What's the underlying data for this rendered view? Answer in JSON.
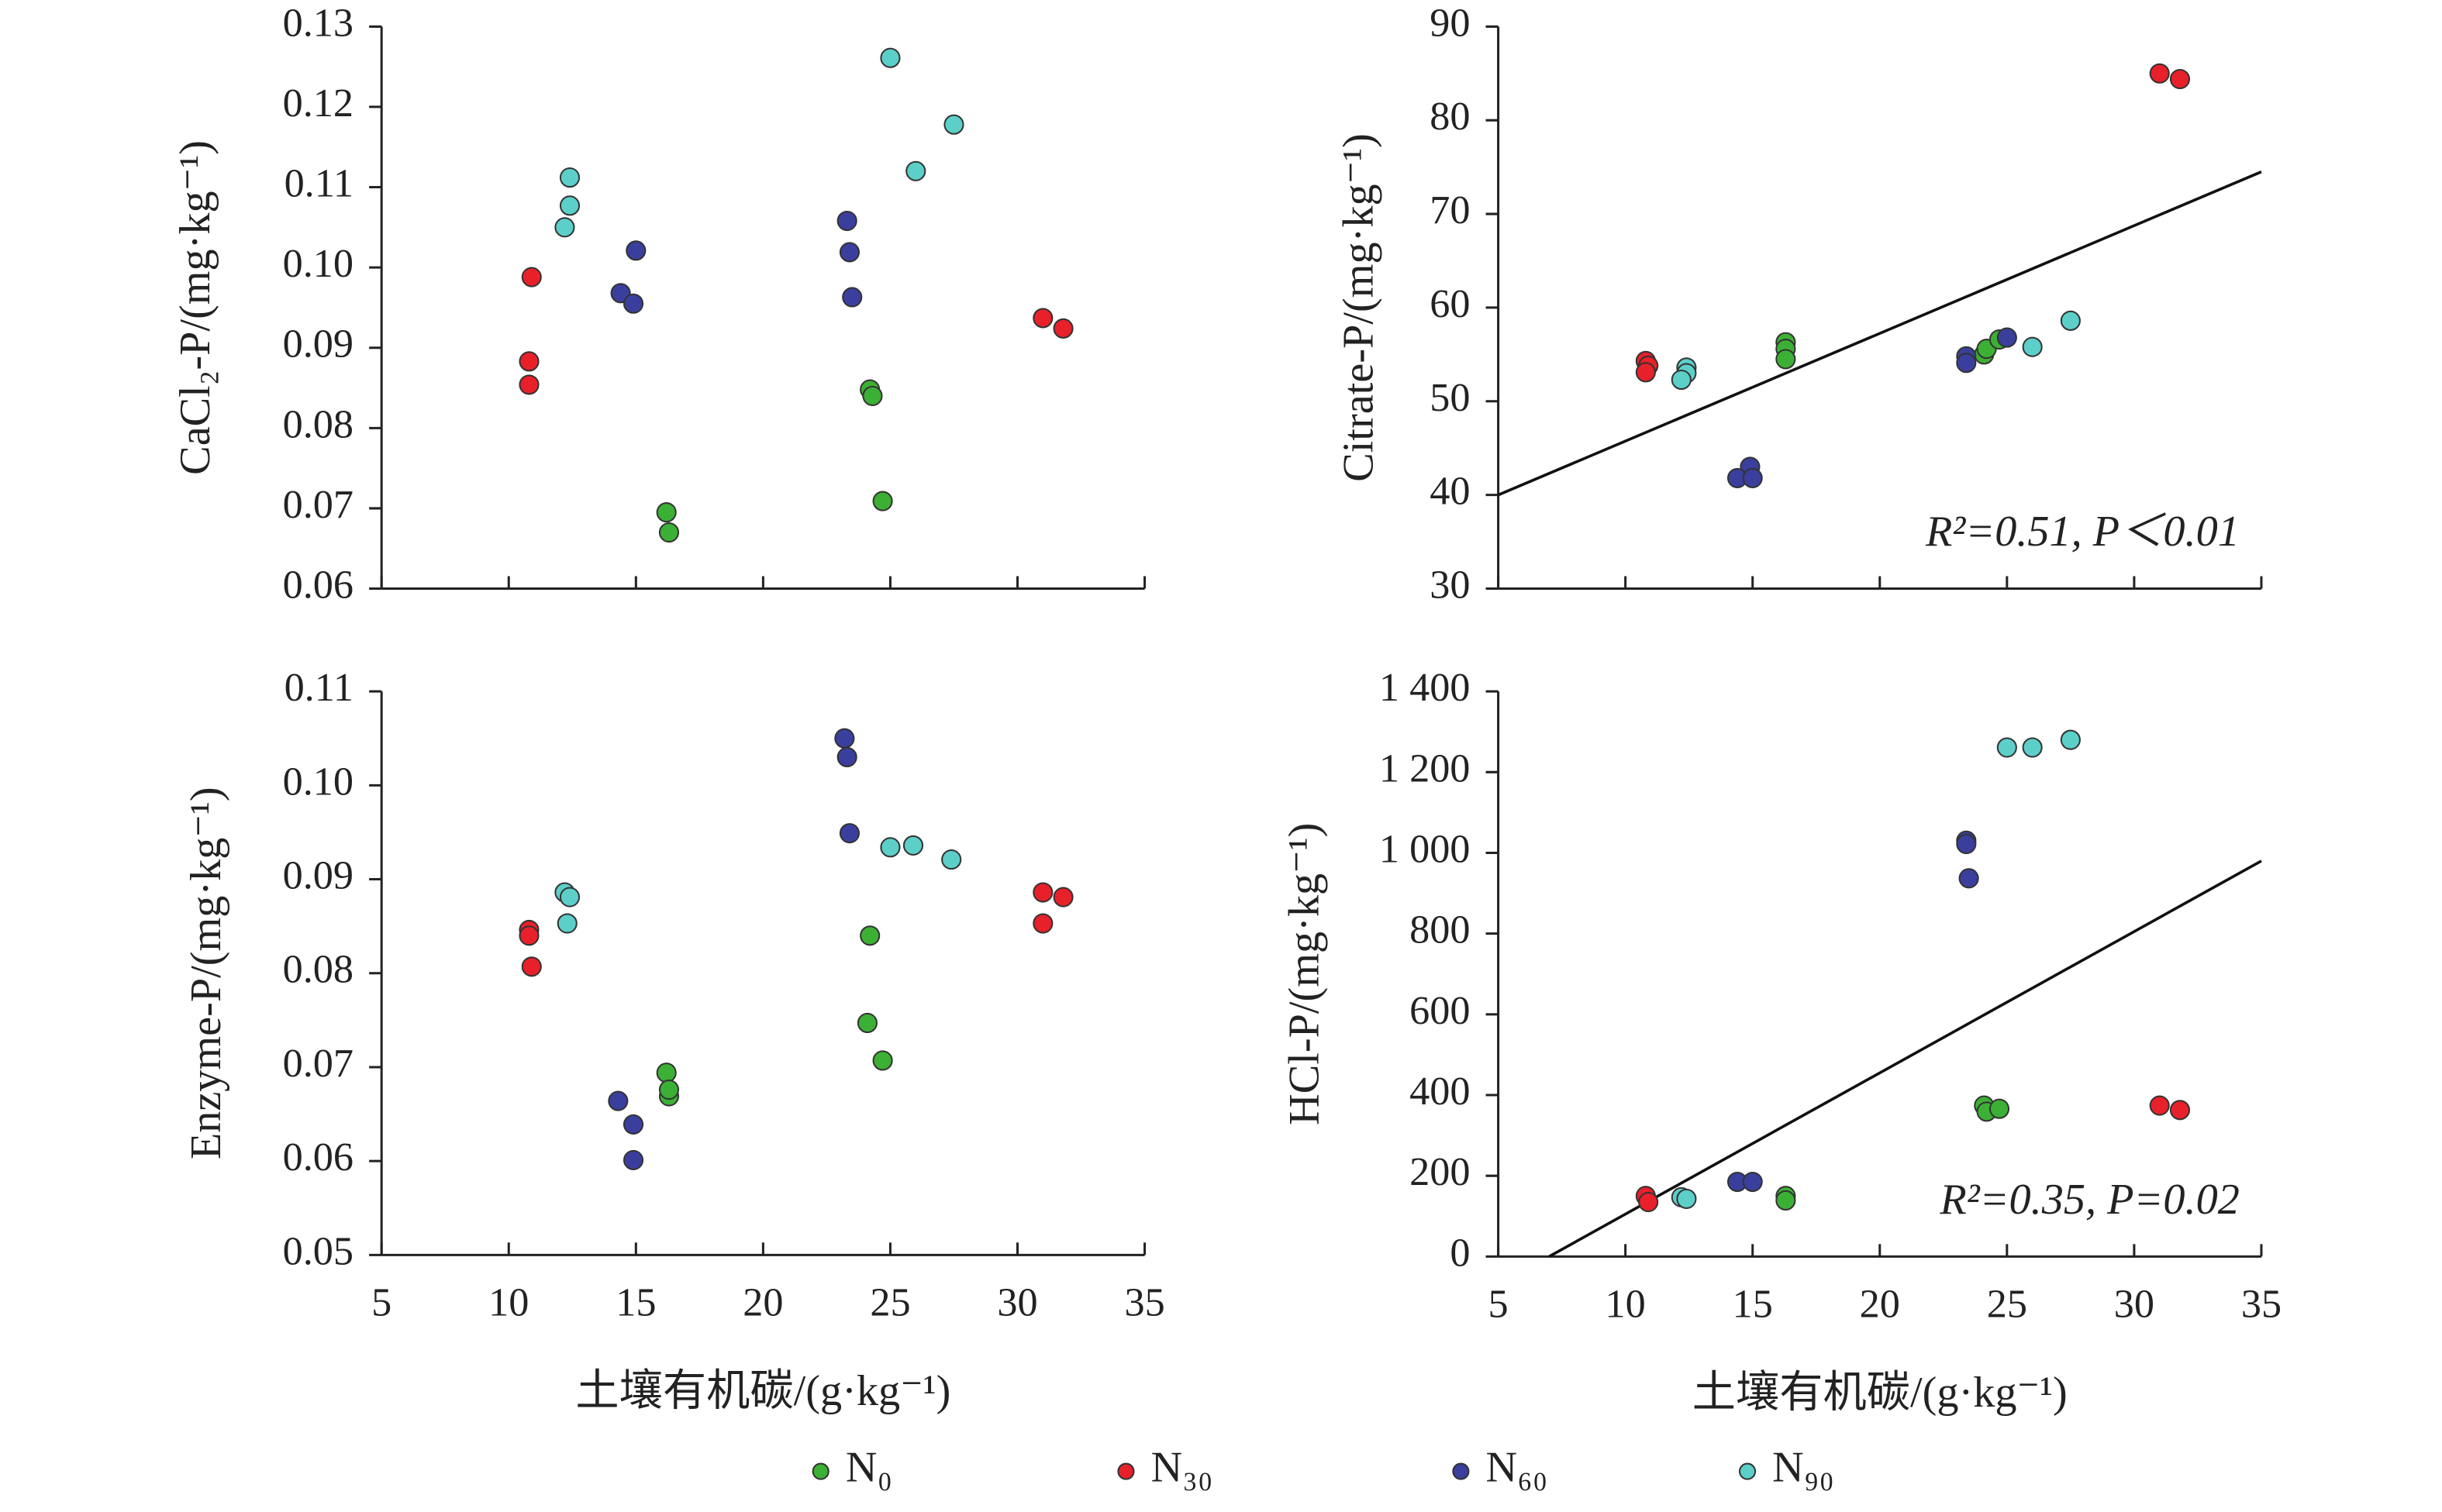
{
  "chart_data": [
    {
      "type": "scatter",
      "ylabel": "CaCl₂-P/(mg·kg⁻¹)",
      "xlim": [
        5,
        35
      ],
      "xticks": [
        5,
        10,
        15,
        20,
        25,
        30,
        35
      ],
      "ylim": [
        0.06,
        0.13
      ],
      "yticks": [
        0.06,
        0.07,
        0.08,
        0.09,
        {
          "value": 0.1,
          "label": "0.10"
        },
        0.11,
        0.12,
        0.13
      ],
      "series": [
        {
          "name": "N₀",
          "color": "#3cb034",
          "x": [
            16.2,
            16.3,
            24.2,
            24.3,
            24.7
          ],
          "y": [
            0.0695,
            0.067,
            0.0848,
            0.084,
            0.0709
          ]
        },
        {
          "name": "N₃₀",
          "color": "#e8202a",
          "x": [
            10.9,
            10.8,
            10.8,
            31.0,
            31.8
          ],
          "y": [
            0.0988,
            0.0883,
            0.0854,
            0.0937,
            0.0924
          ]
        },
        {
          "name": "N₆₀",
          "color": "#3a3f9e",
          "x": [
            15.0,
            14.4,
            14.9,
            23.3,
            23.4,
            23.5
          ],
          "y": [
            0.1021,
            0.0968,
            0.0955,
            0.1058,
            0.1019,
            0.0963
          ]
        },
        {
          "name": "N₉₀",
          "color": "#5ccfc9",
          "x": [
            12.4,
            12.4,
            12.2,
            25.0,
            26.0,
            27.5
          ],
          "y": [
            0.1112,
            0.1077,
            0.105,
            0.1261,
            0.112,
            0.1178
          ]
        }
      ]
    },
    {
      "type": "scatter",
      "ylabel": "Citrate-P/(mg·kg⁻¹)",
      "annotation": "R²=0.51, P＜0.01",
      "xlim": [
        5,
        35
      ],
      "xticks": [
        5,
        10,
        15,
        20,
        25,
        30,
        35
      ],
      "ylim": [
        30,
        90
      ],
      "yticks": [
        30,
        40,
        50,
        60,
        70,
        80,
        90
      ],
      "trendline": {
        "x": [
          5,
          35
        ],
        "y": [
          40,
          74.5
        ]
      },
      "series": [
        {
          "name": "N₀",
          "color": "#3cb034",
          "x": [
            16.3,
            16.3,
            16.3,
            24.1,
            24.2,
            24.7
          ],
          "y": [
            56.3,
            55.6,
            54.5,
            55.0,
            55.6,
            56.6
          ]
        },
        {
          "name": "N₃₀",
          "color": "#e8202a",
          "x": [
            10.8,
            10.9,
            10.8,
            31.0,
            31.8
          ],
          "y": [
            54.3,
            53.8,
            53.1,
            85.0,
            84.4
          ]
        },
        {
          "name": "N₆₀",
          "color": "#3a3f9e",
          "x": [
            14.9,
            14.4,
            15.0,
            23.4,
            23.4,
            25.0
          ],
          "y": [
            43.0,
            41.8,
            41.8,
            54.8,
            54.1,
            56.8
          ]
        },
        {
          "name": "N₉₀",
          "color": "#5ccfc9",
          "x": [
            12.4,
            12.4,
            12.2,
            26.0,
            27.5
          ],
          "y": [
            53.6,
            53.0,
            52.3,
            55.8,
            58.6
          ]
        }
      ]
    },
    {
      "type": "scatter",
      "ylabel": "Enzyme-P/(mg·kg⁻¹)",
      "xlabel": "土壤有机碳/(g·kg⁻¹)",
      "xlim": [
        5,
        35
      ],
      "xticks": [
        5,
        10,
        15,
        20,
        25,
        30,
        35
      ],
      "ylim": [
        0.05,
        0.11
      ],
      "yticks": [
        0.05,
        0.06,
        0.07,
        0.08,
        0.09,
        {
          "value": 0.1,
          "label": "0.10"
        },
        0.11
      ],
      "series": [
        {
          "name": "N₀",
          "color": "#3cb034",
          "x": [
            16.2,
            16.3,
            16.3,
            24.2,
            24.1,
            24.7
          ],
          "y": [
            0.0694,
            0.0669,
            0.0676,
            0.084,
            0.0747,
            0.0707
          ]
        },
        {
          "name": "N₃₀",
          "color": "#e8202a",
          "x": [
            10.8,
            10.8,
            10.9,
            31.0,
            31.8,
            31.0
          ],
          "y": [
            0.0846,
            0.084,
            0.0807,
            0.0886,
            0.0881,
            0.0853
          ]
        },
        {
          "name": "N₆₀",
          "color": "#3a3f9e",
          "x": [
            23.2,
            23.3,
            23.4,
            14.3,
            14.9,
            14.9
          ],
          "y": [
            0.105,
            0.103,
            0.0949,
            0.0664,
            0.0639,
            0.0601
          ]
        },
        {
          "name": "N₉₀",
          "color": "#5ccfc9",
          "x": [
            12.2,
            12.4,
            12.3,
            25.0,
            25.9,
            27.4
          ],
          "y": [
            0.0886,
            0.0881,
            0.0853,
            0.0934,
            0.0936,
            0.0921
          ]
        }
      ]
    },
    {
      "type": "scatter",
      "ylabel": "HCl-P/(mg·kg⁻¹)",
      "xlabel": "土壤有机碳/(g·kg⁻¹)",
      "annotation": "R²=0.35, P=0.02",
      "xlim": [
        5,
        35
      ],
      "xticks": [
        5,
        10,
        15,
        20,
        25,
        30,
        35
      ],
      "ylim": [
        0,
        1400
      ],
      "yticks": [
        0,
        200,
        400,
        600,
        800,
        {
          "value": 1000,
          "label": "1 000"
        },
        {
          "value": 1200,
          "label": "1 200"
        },
        {
          "value": 1400,
          "label": "1 400"
        }
      ],
      "trendline": {
        "x": [
          7,
          35
        ],
        "y": [
          0,
          980
        ]
      },
      "series": [
        {
          "name": "N₀",
          "color": "#3cb034",
          "x": [
            16.3,
            16.3,
            24.1,
            24.2,
            24.7
          ],
          "y": [
            150,
            139,
            374,
            359,
            366
          ]
        },
        {
          "name": "N₃₀",
          "color": "#e8202a",
          "x": [
            10.8,
            10.9,
            31.0,
            31.8
          ],
          "y": [
            150,
            135,
            374,
            363
          ]
        },
        {
          "name": "N₆₀",
          "color": "#3a3f9e",
          "x": [
            23.4,
            23.4,
            23.5,
            14.4,
            15.0
          ],
          "y": [
            1030,
            1022,
            937,
            185,
            185
          ]
        },
        {
          "name": "N₉₀",
          "color": "#5ccfc9",
          "x": [
            12.2,
            12.4,
            25.0,
            26.0,
            27.5
          ],
          "y": [
            147,
            143,
            1261,
            1261,
            1280
          ]
        }
      ]
    }
  ]
}
